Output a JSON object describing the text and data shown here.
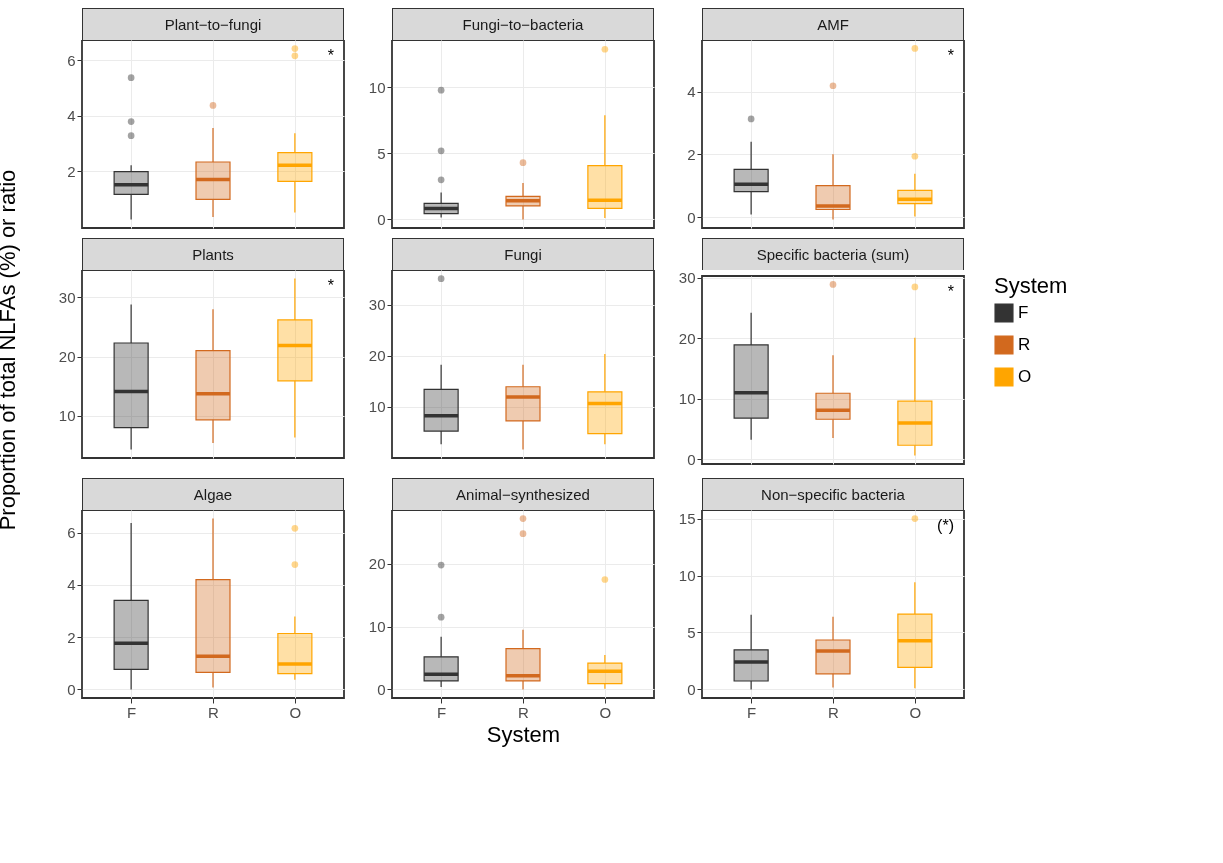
{
  "chart_data": [
    {
      "type": "box",
      "title": "Plant−to−fungi",
      "categories": [
        null,
        null,
        null
      ],
      "colors": [
        "#333333",
        "#d2691e",
        "#ffa500"
      ],
      "ylim": [
        -0.05,
        6.73
      ],
      "yticks": [
        2,
        4,
        6
      ],
      "grid": true,
      "tick_labels": "y",
      "annotations": [
        "*"
      ],
      "boxes": [
        {
          "low": 0.26,
          "q1": 1.16,
          "median": 1.51,
          "q3": 1.98,
          "high": 2.21,
          "outliers": [
            5.37,
            3.79,
            3.28
          ]
        },
        {
          "low": 0.35,
          "q1": 0.98,
          "median": 1.7,
          "q3": 2.33,
          "high": 3.56,
          "outliers": [
            4.37
          ]
        },
        {
          "low": 0.51,
          "q1": 1.63,
          "median": 2.21,
          "q3": 2.67,
          "high": 3.37,
          "outliers": [
            6.42,
            6.16
          ]
        }
      ]
    },
    {
      "type": "box",
      "title": "Fungi−to−bacteria",
      "categories": [
        null,
        null,
        null
      ],
      "colors": [
        "#333333",
        "#d2691e",
        "#ffa500"
      ],
      "ylim": [
        -0.65,
        13.6
      ],
      "yticks": [
        0,
        5,
        10
      ],
      "grid": true,
      "tick_labels": "y",
      "boxes": [
        {
          "low": 0.15,
          "q1": 0.44,
          "median": 0.83,
          "q3": 1.21,
          "high": 2.04,
          "outliers": [
            9.8,
            5.2,
            3.0
          ]
        },
        {
          "low": 0,
          "q1": 1.02,
          "median": 1.41,
          "q3": 1.75,
          "high": 2.77,
          "outliers": [
            4.3
          ]
        },
        {
          "low": 0.1,
          "q1": 0.83,
          "median": 1.46,
          "q3": 4.08,
          "high": 7.9,
          "outliers": [
            12.9
          ]
        }
      ]
    },
    {
      "type": "box",
      "title": "AMF",
      "categories": [
        null,
        null,
        null
      ],
      "colors": [
        "#333333",
        "#d2691e",
        "#ffa500"
      ],
      "ylim": [
        -0.35,
        5.65
      ],
      "yticks": [
        0,
        2,
        4
      ],
      "grid": true,
      "tick_labels": "y",
      "annotations": [
        "*"
      ],
      "boxes": [
        {
          "low": 0.08,
          "q1": 0.81,
          "median": 1.05,
          "q3": 1.52,
          "high": 2.4,
          "outliers": [
            3.13
          ]
        },
        {
          "low": -0.08,
          "q1": 0.24,
          "median": 0.35,
          "q3": 1.0,
          "high": 2.0,
          "outliers": [
            4.19
          ]
        },
        {
          "low": 0.02,
          "q1": 0.43,
          "median": 0.57,
          "q3": 0.85,
          "high": 1.38,
          "outliers": [
            5.38,
            1.94
          ]
        }
      ]
    },
    {
      "type": "box",
      "title": "Plants",
      "ylabel": "Proportion of total NLFAs (%) or ratio",
      "categories": [
        null,
        null,
        null
      ],
      "colors": [
        "#333333",
        "#d2691e",
        "#ffa500"
      ],
      "ylim": [
        2.85,
        34.65
      ],
      "yticks": [
        10,
        20,
        30
      ],
      "grid": true,
      "tick_labels": "y",
      "annotations": [
        "*"
      ],
      "boxes": [
        {
          "low": 4.3,
          "q1": 8.0,
          "median": 14.1,
          "q3": 22.3,
          "high": 28.8
        },
        {
          "low": 5.4,
          "q1": 9.3,
          "median": 13.7,
          "q3": 21.0,
          "high": 28.0
        },
        {
          "low": 6.3,
          "q1": 15.9,
          "median": 21.9,
          "q3": 26.2,
          "high": 33.2
        }
      ]
    },
    {
      "type": "box",
      "title": "Fungi",
      "categories": [
        null,
        null,
        null
      ],
      "colors": [
        "#333333",
        "#d2691e",
        "#ffa500"
      ],
      "ylim": [
        -0.08,
        36.8
      ],
      "yticks": [
        10,
        20,
        30
      ],
      "grid": true,
      "tick_labels": "y",
      "boxes": [
        {
          "low": 2.6,
          "q1": 5.2,
          "median": 8.2,
          "q3": 13.4,
          "high": 18.2,
          "outliers": [
            35.1
          ]
        },
        {
          "low": 1.6,
          "q1": 7.2,
          "median": 11.9,
          "q3": 13.9,
          "high": 18.2
        },
        {
          "low": 2.6,
          "q1": 4.7,
          "median": 10.6,
          "q3": 12.9,
          "high": 20.3
        }
      ]
    },
    {
      "type": "box",
      "title": "Specific bacteria (sum)",
      "legend_title": "System",
      "legend": "right",
      "categories": [
        null,
        null,
        null
      ],
      "ylim": [
        -0.8,
        30.3
      ],
      "yticks": [
        0,
        10,
        20,
        30
      ],
      "grid": true,
      "tick_labels": "y",
      "annotations": [
        "*"
      ],
      "series": [
        {
          "name": "F",
          "color": "#333333",
          "boxes": [
            {
              "low": 3.2,
              "q1": 6.8,
              "median": 11.0,
              "q3": 18.9,
              "high": 24.2
            },
            null,
            null
          ]
        },
        {
          "name": "R",
          "color": "#d2691e",
          "boxes": [
            null,
            {
              "low": 3.5,
              "q1": 6.6,
              "median": 8.1,
              "q3": 10.9,
              "high": 17.2,
              "outliers": [
                28.9
              ]
            },
            null
          ]
        },
        {
          "name": "O",
          "color": "#ffa500",
          "boxes": [
            null,
            null,
            {
              "low": 0.6,
              "q1": 2.3,
              "median": 6.0,
              "q3": 9.6,
              "high": 20.1,
              "outliers": [
                28.5
              ]
            }
          ]
        }
      ]
    },
    {
      "type": "box",
      "title": "Algae",
      "categories": [
        "F",
        "R",
        "O"
      ],
      "colors": [
        "#333333",
        "#d2691e",
        "#ffa500"
      ],
      "ylim": [
        -0.33,
        6.87
      ],
      "yticks": [
        0,
        2,
        4,
        6
      ],
      "grid": true,
      "boxes": [
        {
          "low": 0,
          "q1": 0.77,
          "median": 1.77,
          "q3": 3.41,
          "high": 6.37
        },
        {
          "low": 0.07,
          "q1": 0.65,
          "median": 1.27,
          "q3": 4.2,
          "high": 6.54
        },
        {
          "low": 0.37,
          "q1": 0.6,
          "median": 0.97,
          "q3": 2.14,
          "high": 2.79,
          "outliers": [
            6.17,
            4.78
          ]
        }
      ]
    },
    {
      "type": "box",
      "title": "Animal−synthesized",
      "xlabel": "System",
      "categories": [
        "F",
        "R",
        "O"
      ],
      "colors": [
        "#333333",
        "#d2691e",
        "#ffa500"
      ],
      "ylim": [
        -1.36,
        28.56
      ],
      "yticks": [
        0,
        10,
        20
      ],
      "grid": true,
      "boxes": [
        {
          "low": 0.4,
          "q1": 1.35,
          "median": 2.4,
          "q3": 5.2,
          "high": 8.4,
          "outliers": [
            19.8,
            11.5
          ]
        },
        {
          "low": 0,
          "q1": 1.35,
          "median": 2.2,
          "q3": 6.5,
          "high": 9.5,
          "outliers": [
            27.2,
            24.8
          ]
        },
        {
          "low": 0.1,
          "q1": 0.94,
          "median": 2.9,
          "q3": 4.2,
          "high": 5.5,
          "outliers": [
            17.5
          ]
        }
      ]
    },
    {
      "type": "box",
      "title": "Non−specific bacteria",
      "categories": [
        "F",
        "R",
        "O"
      ],
      "colors": [
        "#333333",
        "#d2691e",
        "#ffa500"
      ],
      "ylim": [
        -0.75,
        15.75
      ],
      "yticks": [
        0,
        5,
        10,
        15
      ],
      "grid": true,
      "annotations": [
        "(*)"
      ],
      "boxes": [
        {
          "low": 0,
          "q1": 0.74,
          "median": 2.4,
          "q3": 3.48,
          "high": 6.56
        },
        {
          "low": 0.17,
          "q1": 1.37,
          "median": 3.37,
          "q3": 4.34,
          "high": 6.39
        },
        {
          "low": 0.11,
          "q1": 1.94,
          "median": 4.28,
          "q3": 6.62,
          "high": 9.41,
          "outliers": [
            15.0
          ]
        }
      ]
    }
  ]
}
